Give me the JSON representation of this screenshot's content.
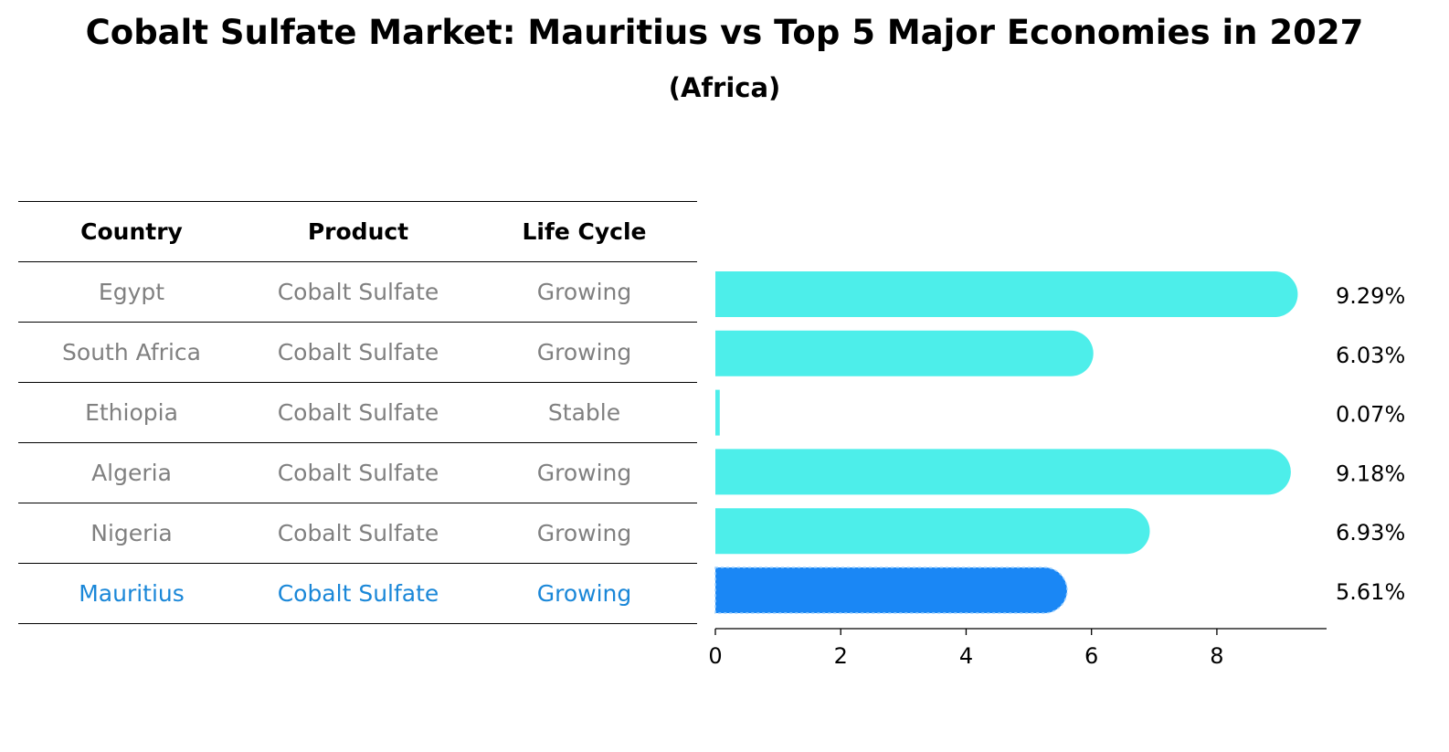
{
  "title": "Cobalt Sulfate Market: Mauritius vs Top 5 Major Economies in 2027",
  "subtitle": "(Africa)",
  "table": {
    "columns": [
      "Country",
      "Product",
      "Life Cycle"
    ],
    "rows": [
      {
        "country": "Egypt",
        "product": "Cobalt Sulfate",
        "life_cycle": "Growing"
      },
      {
        "country": "South Africa",
        "product": "Cobalt Sulfate",
        "life_cycle": "Growing"
      },
      {
        "country": "Ethiopia",
        "product": "Cobalt Sulfate",
        "life_cycle": "Stable"
      },
      {
        "country": "Algeria",
        "product": "Cobalt Sulfate",
        "life_cycle": "Growing"
      },
      {
        "country": "Nigeria",
        "product": "Cobalt Sulfate",
        "life_cycle": "Growing"
      },
      {
        "country": "Mauritius",
        "product": "Cobalt Sulfate",
        "life_cycle": "Growing"
      }
    ]
  },
  "colors": {
    "bar": "#4deeea",
    "highlight_bar": "#1a87f5",
    "highlight_text": "#1a87d8",
    "row_text": "#808080"
  },
  "chart_data": {
    "type": "bar",
    "orientation": "horizontal",
    "categories": [
      "Egypt",
      "South Africa",
      "Ethiopia",
      "Algeria",
      "Nigeria",
      "Mauritius"
    ],
    "values": [
      9.29,
      6.03,
      0.07,
      9.18,
      6.93,
      5.61
    ],
    "value_labels": [
      "9.29%",
      "6.03%",
      "0.07%",
      "9.18%",
      "6.93%",
      "5.61%"
    ],
    "highlight": "Mauritius",
    "xlim": [
      0,
      9.75
    ],
    "xticks": [
      0,
      2,
      4,
      6,
      8
    ],
    "xlabel": "",
    "ylabel": "",
    "grid": false
  }
}
